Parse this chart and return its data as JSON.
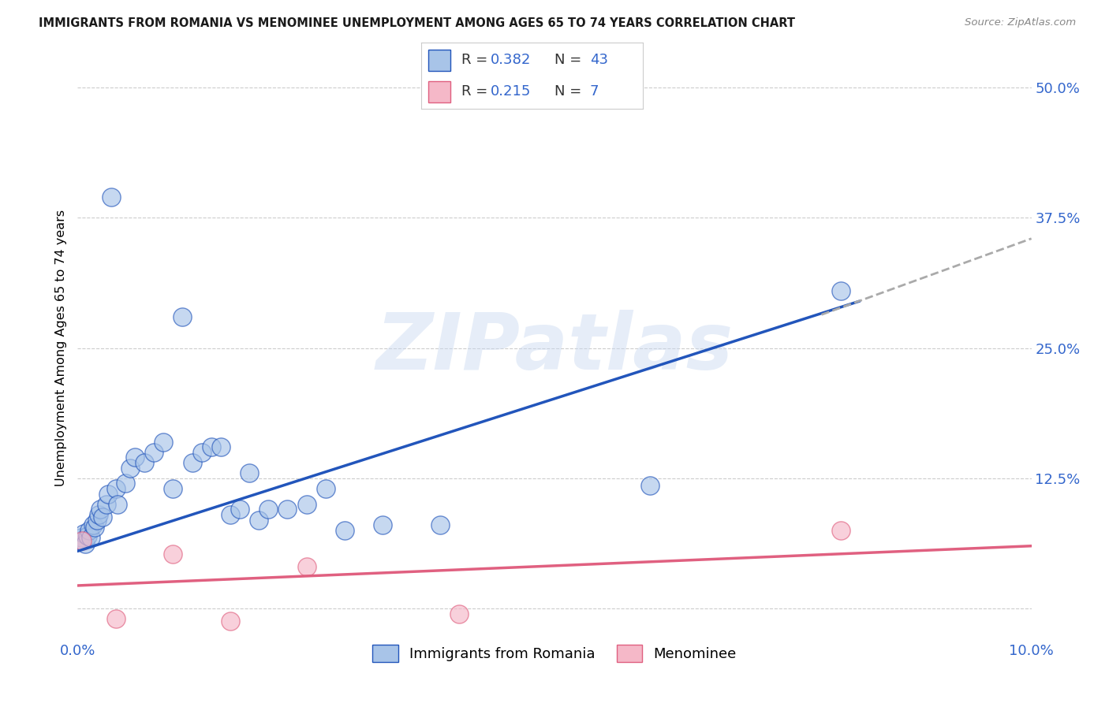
{
  "title": "IMMIGRANTS FROM ROMANIA VS MENOMINEE UNEMPLOYMENT AMONG AGES 65 TO 74 YEARS CORRELATION CHART",
  "source": "Source: ZipAtlas.com",
  "ylabel": "Unemployment Among Ages 65 to 74 years",
  "xlim": [
    0.0,
    0.1
  ],
  "ylim": [
    -0.03,
    0.53
  ],
  "xticks": [
    0.0,
    0.02,
    0.04,
    0.06,
    0.08,
    0.1
  ],
  "xticklabels": [
    "0.0%",
    "",
    "",
    "",
    "",
    "10.0%"
  ],
  "yticks": [
    0.0,
    0.125,
    0.25,
    0.375,
    0.5
  ],
  "yticklabels": [
    "",
    "12.5%",
    "25.0%",
    "37.5%",
    "50.0%"
  ],
  "blue_color": "#a8c4e8",
  "pink_color": "#f5b8c8",
  "blue_line_color": "#2255bb",
  "pink_line_color": "#e06080",
  "dashed_line_color": "#aaaaaa",
  "watermark": "ZIPatlas",
  "legend_labels": [
    "Immigrants from Romania",
    "Menominee"
  ],
  "blue_scatter_x": [
    0.0002,
    0.0004,
    0.0006,
    0.0008,
    0.001,
    0.0012,
    0.0014,
    0.0016,
    0.0018,
    0.002,
    0.0022,
    0.0024,
    0.0026,
    0.003,
    0.0032,
    0.0035,
    0.004,
    0.0042,
    0.005,
    0.0055,
    0.006,
    0.007,
    0.008,
    0.009,
    0.01,
    0.011,
    0.012,
    0.013,
    0.014,
    0.015,
    0.016,
    0.017,
    0.018,
    0.019,
    0.02,
    0.022,
    0.024,
    0.026,
    0.028,
    0.032,
    0.038,
    0.06,
    0.08
  ],
  "blue_scatter_y": [
    0.065,
    0.068,
    0.072,
    0.062,
    0.07,
    0.075,
    0.068,
    0.08,
    0.078,
    0.085,
    0.09,
    0.095,
    0.088,
    0.1,
    0.11,
    0.395,
    0.115,
    0.1,
    0.12,
    0.135,
    0.145,
    0.14,
    0.15,
    0.16,
    0.115,
    0.28,
    0.14,
    0.15,
    0.155,
    0.155,
    0.09,
    0.095,
    0.13,
    0.085,
    0.095,
    0.095,
    0.1,
    0.115,
    0.075,
    0.08,
    0.08,
    0.118,
    0.305
  ],
  "pink_scatter_x": [
    0.0005,
    0.004,
    0.01,
    0.016,
    0.024,
    0.04,
    0.08
  ],
  "pink_scatter_y": [
    0.065,
    -0.01,
    0.052,
    -0.012,
    0.04,
    -0.005,
    0.075
  ],
  "blue_trendline_x": [
    0.0,
    0.082
  ],
  "blue_trendline_y": [
    0.055,
    0.295
  ],
  "pink_trendline_x": [
    0.0,
    0.1
  ],
  "pink_trendline_y": [
    0.022,
    0.06
  ],
  "dashed_trendline_x": [
    0.078,
    0.1
  ],
  "dashed_trendline_y": [
    0.282,
    0.355
  ]
}
